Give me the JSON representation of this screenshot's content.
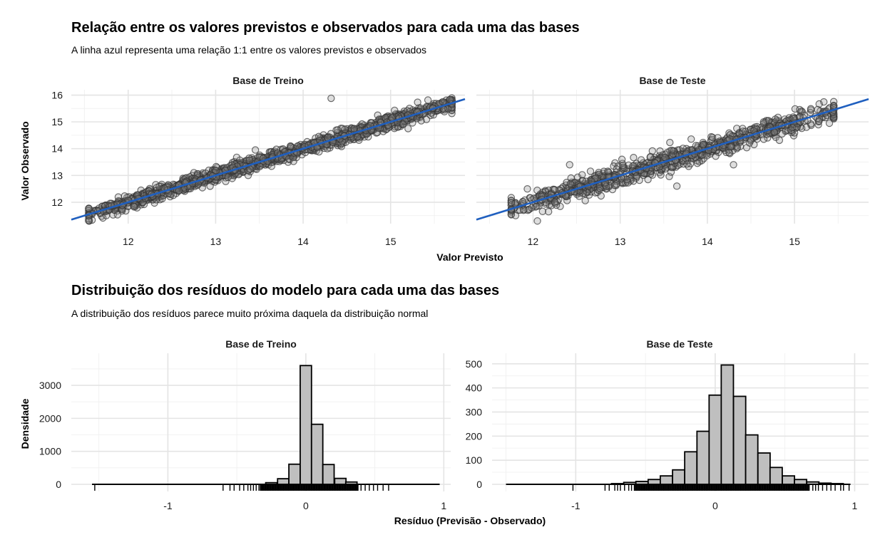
{
  "section1": {
    "title": "Relação entre os valores previstos e observados para cada uma das bases",
    "subtitle": "A linha azul representa uma relação 1:1 entre os valores previstos e observados"
  },
  "section2": {
    "title": "Distribuição dos resíduos do modelo para cada uma das bases",
    "subtitle": "A distribuição dos resíduos parece muito próxima daquela da distribuição normal"
  },
  "colors": {
    "reference_line": "#1f5fbf",
    "points": "#888888",
    "bars": "#bfbfbf"
  },
  "chart_data": [
    {
      "type": "scatter",
      "facet": "Base de Treino",
      "title": "Relação entre os valores previstos e observados para cada uma das bases",
      "xlabel": "Valor Previsto",
      "ylabel": "Valor Observado",
      "xlim": [
        11.35,
        15.85
      ],
      "ylim": [
        11.2,
        16.2
      ],
      "xticks": [
        "12",
        "13",
        "14",
        "15"
      ],
      "yticks": [
        "12",
        "13",
        "14",
        "15",
        "16"
      ],
      "reference_line": {
        "slope": 1,
        "intercept": 0,
        "label": "1:1"
      },
      "points_n": 1400,
      "x_range": [
        11.55,
        15.7
      ],
      "residual_sd": 0.13,
      "notable_points": [
        {
          "x": 11.55,
          "y": 11.3
        },
        {
          "x": 11.75,
          "y": 11.5
        },
        {
          "x": 14.32,
          "y": 15.88
        },
        {
          "x": 15.2,
          "y": 14.75
        },
        {
          "x": 15.6,
          "y": 15.5
        },
        {
          "x": 15.68,
          "y": 15.83
        }
      ]
    },
    {
      "type": "scatter",
      "facet": "Base de Teste",
      "xlabel": "Valor Previsto",
      "ylabel": "Valor Observado",
      "xlim": [
        11.35,
        15.85
      ],
      "ylim": [
        11.2,
        16.2
      ],
      "xticks": [
        "12",
        "13",
        "14",
        "15"
      ],
      "reference_line": {
        "slope": 1,
        "intercept": 0,
        "label": "1:1"
      },
      "points_n": 900,
      "x_range": [
        11.75,
        15.45
      ],
      "residual_sd": 0.2,
      "notable_points": [
        {
          "x": 11.8,
          "y": 11.5
        },
        {
          "x": 12.05,
          "y": 11.3
        },
        {
          "x": 12.42,
          "y": 13.4
        },
        {
          "x": 13.02,
          "y": 13.6
        },
        {
          "x": 13.65,
          "y": 12.6
        },
        {
          "x": 14.3,
          "y": 13.4
        },
        {
          "x": 14.78,
          "y": 15.1
        },
        {
          "x": 15.4,
          "y": 14.95
        },
        {
          "x": 15.35,
          "y": 15.33
        }
      ]
    },
    {
      "type": "bar",
      "facet": "Base de Treino",
      "title": "Distribuição dos resíduos do modelo para cada uma das bases",
      "xlabel": "Resíduo (Previsão - Observado)",
      "ylabel": "Densidade",
      "xlim": [
        -1.7,
        1.05
      ],
      "ylim": [
        0,
        3800
      ],
      "xticks": [
        "-1",
        "0",
        "1"
      ],
      "yticks": [
        "0",
        "1000",
        "2000",
        "3000"
      ],
      "bin_width": 0.082,
      "bin_centers": [
        -0.25,
        -0.164,
        -0.082,
        0,
        0.082,
        0.164,
        0.25,
        0.33
      ],
      "values": [
        50,
        170,
        610,
        3600,
        1820,
        600,
        180,
        70
      ],
      "baseline_range": [
        -1.55,
        0.97
      ],
      "rug_x": [
        -1.53,
        -0.6,
        -0.55,
        -0.52,
        -0.48,
        -0.45,
        -0.42,
        -0.4,
        -0.38,
        -0.36,
        -0.34,
        0.4,
        0.43,
        0.46,
        0.49,
        0.52,
        0.56,
        0.6
      ]
    },
    {
      "type": "bar",
      "facet": "Base de Teste",
      "xlabel": "Resíduo (Previsão - Observado)",
      "ylabel": "Densidade",
      "xlim": [
        -1.6,
        1.1
      ],
      "ylim": [
        0,
        520
      ],
      "xticks": [
        "-1",
        "0",
        "1"
      ],
      "yticks": [
        "0",
        "100",
        "200",
        "300",
        "400",
        "500"
      ],
      "bin_width": 0.0875,
      "bin_centers": [
        -0.7,
        -0.612,
        -0.525,
        -0.437,
        -0.35,
        -0.262,
        -0.175,
        -0.087,
        0,
        0.087,
        0.175,
        0.262,
        0.35,
        0.437,
        0.525,
        0.612,
        0.7,
        0.787,
        0.875
      ],
      "values": [
        3,
        8,
        12,
        20,
        35,
        60,
        135,
        220,
        370,
        495,
        365,
        205,
        130,
        70,
        35,
        20,
        10,
        5,
        3
      ],
      "baseline_range": [
        -1.5,
        0.97
      ],
      "rug_x": [
        -1.02,
        -0.79,
        -0.76,
        -0.72,
        -0.7,
        -0.68,
        -0.65,
        -0.62,
        -0.6,
        0.7,
        0.72,
        0.74,
        0.77,
        0.8,
        0.83,
        0.86,
        0.9,
        0.92,
        0.96
      ]
    }
  ]
}
